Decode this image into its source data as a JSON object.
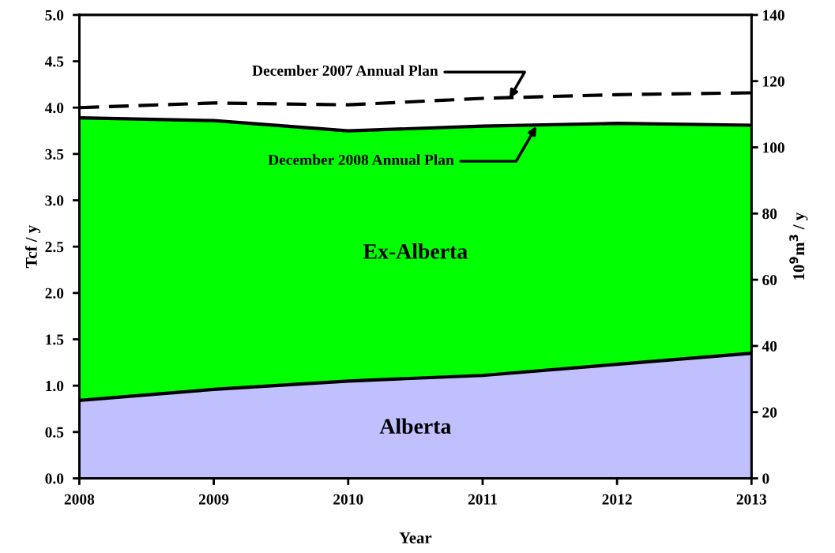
{
  "chart_data": {
    "type": "area",
    "stacked": true,
    "xlabel": "Year",
    "ylabel": "Tcf / y",
    "y2label": "10$^{9}$m$^{3}$ / y",
    "x": [
      2008,
      2009,
      2010,
      2011,
      2012,
      2013
    ],
    "series": [
      {
        "name": "Alberta",
        "color": "#c0c0ff",
        "values": [
          0.84,
          0.96,
          1.05,
          1.11,
          1.23,
          1.35
        ]
      },
      {
        "name": "Ex-Alberta",
        "color": "#00ff00",
        "values": [
          3.05,
          2.9,
          2.7,
          2.69,
          2.6,
          2.46
        ]
      },
      {
        "type": "line",
        "color": "#000000",
        "line_style": "dashed",
        "values": [
          4.0,
          4.05,
          4.03,
          4.1,
          4.14,
          4.16
        ]
      }
    ],
    "xlim": [
      2008,
      2013
    ],
    "xticks": [
      2008,
      2009,
      2010,
      2011,
      2012,
      2013
    ],
    "ylim": [
      0,
      5
    ],
    "yticks": [
      {
        "value": 0,
        "label": "0.0"
      },
      0.5,
      {
        "value": 1,
        "label": "1.0"
      },
      1.5,
      {
        "value": 2,
        "label": "2.0"
      },
      2.5,
      {
        "value": 3,
        "label": "3.0"
      },
      3.5,
      {
        "value": 4,
        "label": "4.0"
      },
      4.5,
      {
        "value": 5,
        "label": "5.0"
      }
    ],
    "y2lim": [
      0,
      140
    ],
    "y2ticks": [
      0,
      20,
      40,
      60,
      80,
      100,
      120,
      140
    ],
    "annotations": [
      {
        "text": "December 2007 Annual Plan",
        "x": 2011.2,
        "y": 4.1
      },
      {
        "text": "December 2008 Annual Plan",
        "x": 2011.4,
        "y": 3.8
      }
    ],
    "grid": false,
    "legend": false
  }
}
